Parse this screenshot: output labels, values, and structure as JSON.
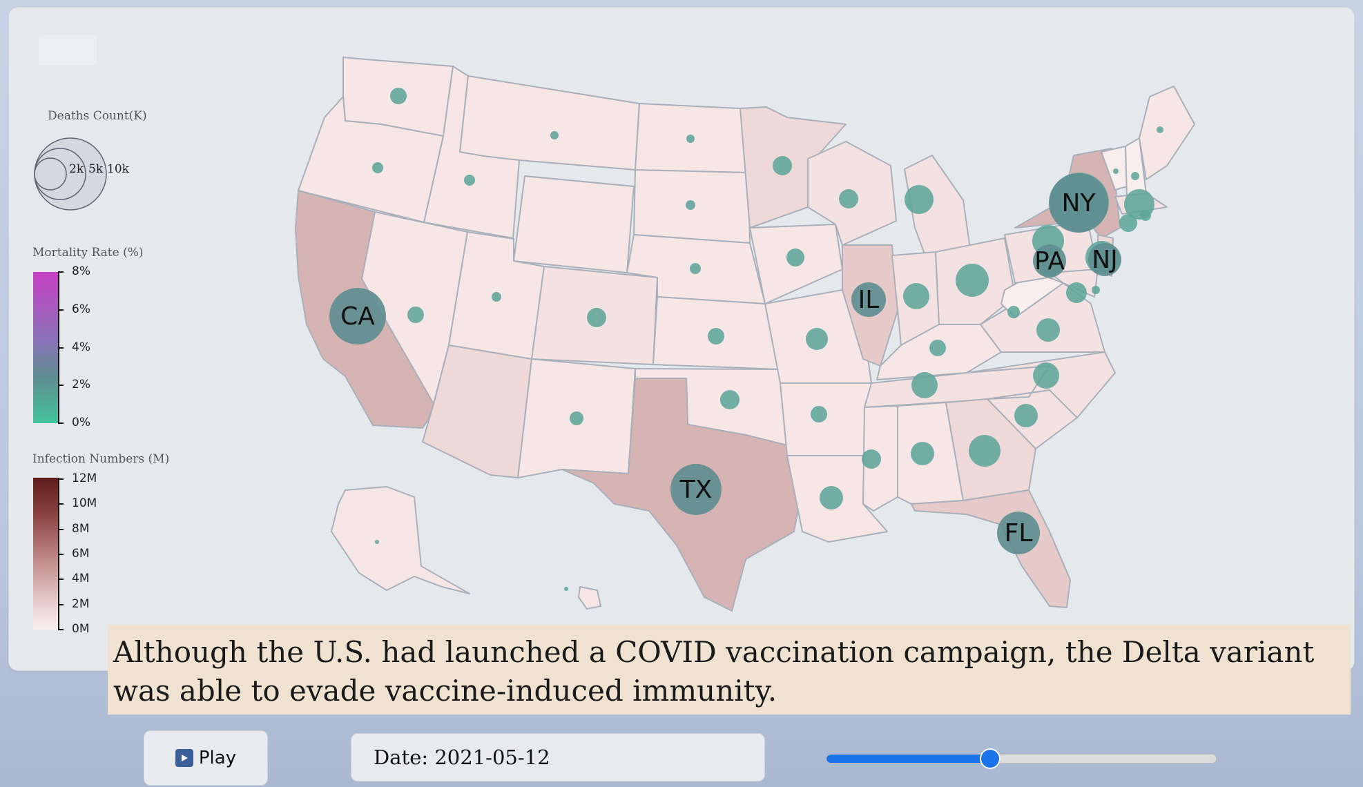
{
  "legend": {
    "deaths": {
      "title": "Deaths Count(K)",
      "labels": [
        "2k",
        "5k",
        "10k"
      ]
    },
    "mortality": {
      "title": "Mortality Rate (%)",
      "ticks": [
        "8%",
        "6%",
        "4%",
        "2%",
        "0%"
      ]
    },
    "infection": {
      "title": "Infection Numbers (M)",
      "ticks": [
        "12M",
        "10M",
        "8M",
        "6M",
        "4M",
        "2M",
        "0M"
      ]
    }
  },
  "map": {
    "state_labels": [
      "CA",
      "TX",
      "NY",
      "PA",
      "NJ",
      "IL",
      "FL"
    ]
  },
  "caption": "Although the U.S. had launched a COVID vaccination campaign, the Delta variant was able to evade vaccine-induced immunity.",
  "controls": {
    "play_label": "Play",
    "date_text": "Date: 2021-05-12",
    "slider_fraction": 0.42
  },
  "colors": {
    "state_light": "#f6e6e6",
    "state_mid": "#eed8d8",
    "state_dark": "#d7b4b4",
    "bubble": "#5fa59a",
    "bubble_dark": "#5f8e90",
    "accent": "#1a73e8"
  }
}
